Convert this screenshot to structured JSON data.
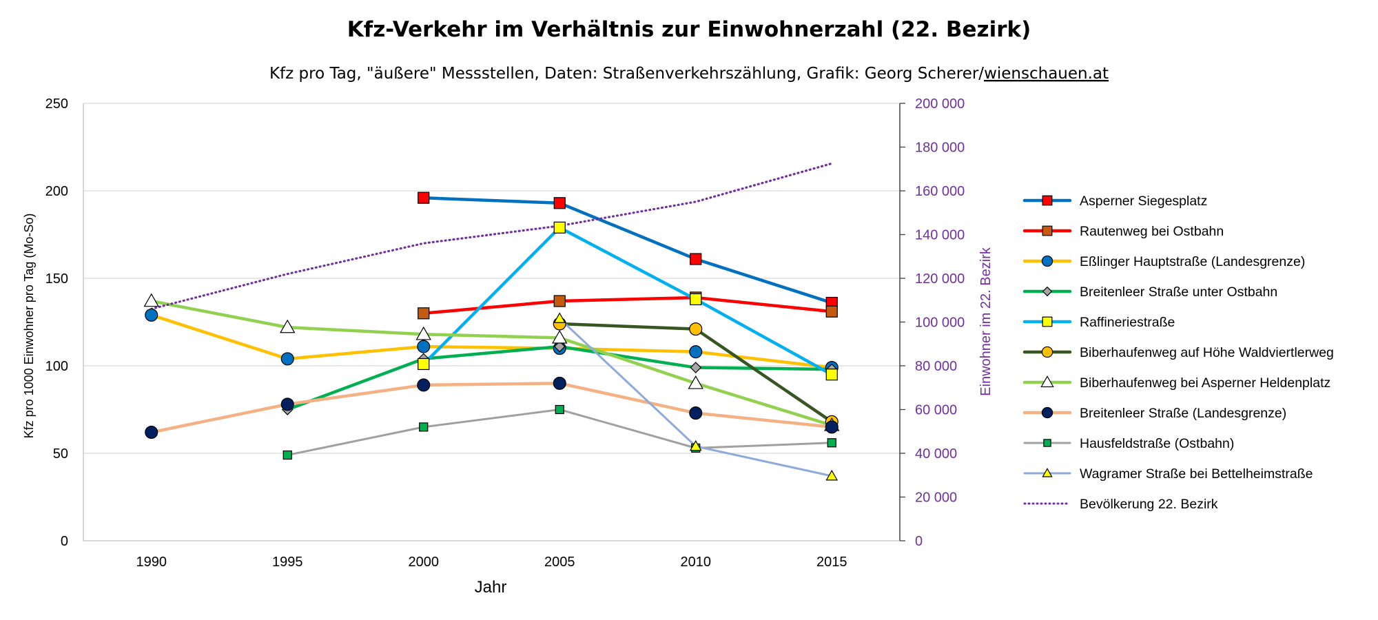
{
  "chart_data": {
    "type": "line",
    "title": "Kfz-Verkehr im Verhältnis zur Einwohnerzahl (22. Bezirk)",
    "subtitle_main": "Kfz pro Tag, \"äußere\" Messstellen, Daten: Straßenverkehrszählung, Grafik: Georg Scherer/",
    "subtitle_link": "wienschauen.at",
    "xlabel": "Jahr",
    "ylabel": "Kfz pro 1000 Einwohner pro Tag (Mo-So)",
    "ylabel_right": "Einwohner im 22. Bezirk",
    "x": [
      1990,
      1995,
      2000,
      2005,
      2010,
      2015
    ],
    "xlim": [
      1987.5,
      2017.5
    ],
    "ylim": [
      0,
      250
    ],
    "y_ticks": [
      0,
      50,
      100,
      150,
      200,
      250
    ],
    "ylim_right": [
      0,
      200000
    ],
    "y_ticks_right": [
      "0",
      "20 000",
      "40 000",
      "60 000",
      "80 000",
      "100 000",
      "120 000",
      "140 000",
      "160 000",
      "180 000",
      "200 000"
    ],
    "grid": true,
    "legend_position": "right",
    "series": [
      {
        "name": "Asperner Siegesplatz",
        "color": "#0070c0",
        "marker": "square",
        "marker_fill": "#ff0000",
        "values": [
          null,
          null,
          196,
          193,
          161,
          136
        ]
      },
      {
        "name": "Rautenweg bei Ostbahn",
        "color": "#ff0000",
        "marker": "square",
        "marker_fill": "#c55a11",
        "values": [
          null,
          null,
          130,
          137,
          139,
          131
        ]
      },
      {
        "name": "Eßlinger Hauptstraße (Landesgrenze)",
        "color": "#ffc000",
        "marker": "circle",
        "marker_fill": "#0070c0",
        "values": [
          129,
          104,
          111,
          110,
          108,
          99
        ]
      },
      {
        "name": "Breitenleer Straße unter Ostbahn",
        "color": "#00b050",
        "marker": "diamond",
        "marker_fill": "#a6a6a6",
        "values": [
          null,
          75,
          104,
          111,
          99,
          98
        ]
      },
      {
        "name": "Raffineriestraße",
        "color": "#00b0f0",
        "marker": "square",
        "marker_fill": "#ffff00",
        "values": [
          null,
          null,
          101,
          179,
          138,
          95
        ]
      },
      {
        "name": "Biberhaufenweg auf Höhe Waldviertlerweg",
        "color": "#375623",
        "marker": "circle",
        "marker_fill": "#ffc000",
        "values": [
          null,
          null,
          null,
          124,
          121,
          68
        ]
      },
      {
        "name": "Biberhaufenweg bei Asperner Heldenplatz",
        "color": "#92d050",
        "marker": "triangle",
        "marker_fill": "#ffffff",
        "values": [
          137,
          122,
          118,
          116,
          90,
          66
        ]
      },
      {
        "name": "Breitenleer Straße (Landesgrenze)",
        "color": "#f4b183",
        "marker": "circle",
        "marker_fill": "#002060",
        "values": [
          62,
          78,
          89,
          90,
          73,
          65
        ]
      },
      {
        "name": "Hausfeldstraße (Ostbahn)",
        "color": "#a0a0a0",
        "marker": "square",
        "marker_fill": "#00b050",
        "values": [
          null,
          49,
          65,
          75,
          53,
          56
        ]
      },
      {
        "name": "Wagramer Straße bei Bettelheimstraße",
        "color": "#8eaadb",
        "marker": "triangle",
        "marker_fill": "#ffff00",
        "values": [
          null,
          null,
          null,
          127,
          54,
          37
        ]
      },
      {
        "name": "Bevölkerung 22. Bezirk",
        "color": "#7030a0",
        "marker": "none",
        "line_style": "dotted",
        "axis": "right",
        "values": [
          106000,
          122000,
          136000,
          144000,
          155000,
          172500
        ]
      }
    ]
  }
}
